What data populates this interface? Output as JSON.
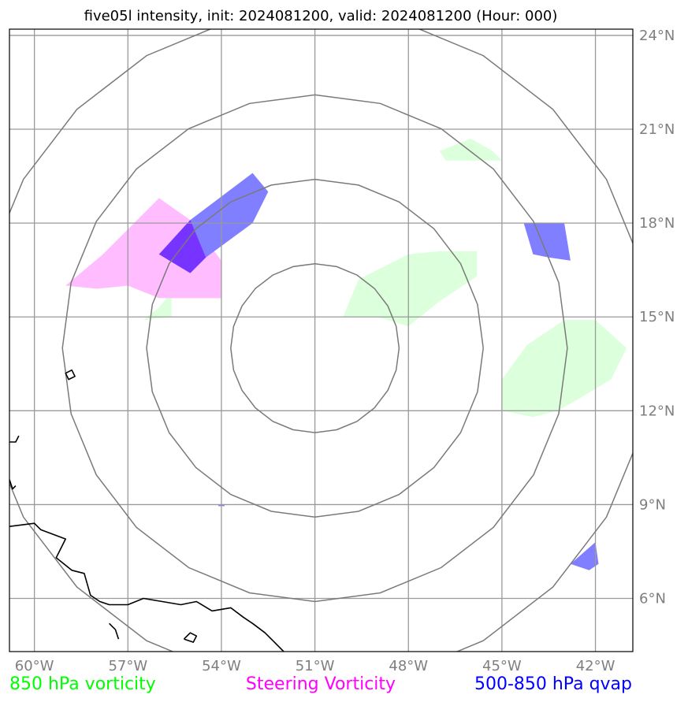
{
  "title": "five05l intensity, init: 2024081200, valid: 2024081200 (Hour: 000)",
  "map": {
    "lon_range": [
      -60.8,
      -40.8
    ],
    "lat_range": [
      4.3,
      24.2
    ],
    "lon_ticks": [
      {
        "value": -60,
        "label": "60°W"
      },
      {
        "value": -57,
        "label": "57°W"
      },
      {
        "value": -54,
        "label": "54°W"
      },
      {
        "value": -51,
        "label": "51°W"
      },
      {
        "value": -48,
        "label": "48°W"
      },
      {
        "value": -45,
        "label": "45°W"
      },
      {
        "value": -42,
        "label": "42°W"
      }
    ],
    "lat_ticks": [
      {
        "value": 24,
        "label": "24°N"
      },
      {
        "value": 21,
        "label": "21°N"
      },
      {
        "value": 18,
        "label": "18°N"
      },
      {
        "value": 15,
        "label": "15°N"
      },
      {
        "value": 12,
        "label": "12°N"
      },
      {
        "value": 9,
        "label": "9°N"
      },
      {
        "value": 6,
        "label": "6°N"
      }
    ],
    "center": {
      "lon": -51,
      "lat": 14
    },
    "range_rings_deg": [
      2.7,
      5.4,
      8.1,
      10.8
    ]
  },
  "legend": [
    {
      "label": "850 hPa vorticity",
      "color": "#00ff00"
    },
    {
      "label": "Steering Vorticity",
      "color": "#ff00ff"
    },
    {
      "label": "500-850 hPa qvap",
      "color": "#0000ff"
    }
  ],
  "fields": {
    "vort850": {
      "color": "#dcffdc",
      "polygons": [
        [
          [
            -46.0,
            20.7
          ],
          [
            -47.0,
            20.3
          ],
          [
            -46.8,
            20.0
          ],
          [
            -45.0,
            20.0
          ],
          [
            -45.3,
            20.3
          ]
        ],
        [
          [
            -50.1,
            15.0
          ],
          [
            -49.6,
            16.2
          ],
          [
            -48.0,
            17.0
          ],
          [
            -47.0,
            17.1
          ],
          [
            -45.8,
            17.1
          ],
          [
            -45.8,
            16.3
          ],
          [
            -47.0,
            15.5
          ],
          [
            -48.0,
            14.7
          ],
          [
            -49.0,
            15.0
          ]
        ],
        [
          [
            -56.5,
            14.9
          ],
          [
            -55.6,
            15.0
          ],
          [
            -55.6,
            15.8
          ],
          [
            -56.0,
            15.3
          ]
        ],
        [
          [
            -43.0,
            14.9
          ],
          [
            -42.0,
            14.9
          ],
          [
            -41.0,
            14.0
          ],
          [
            -41.5,
            13.0
          ],
          [
            -42.5,
            12.4
          ],
          [
            -43.2,
            12.0
          ],
          [
            -44.0,
            11.8
          ],
          [
            -45.0,
            12.0
          ],
          [
            -45.0,
            11.3
          ],
          [
            -45.0,
            13.0
          ],
          [
            -44.2,
            14.1
          ]
        ]
      ]
    },
    "steering": {
      "color": "#ffbcff",
      "polygons": [
        [
          [
            -59.0,
            16.0
          ],
          [
            -57.8,
            17.0
          ],
          [
            -56.0,
            18.8
          ],
          [
            -55.0,
            18.1
          ],
          [
            -54.0,
            16.8
          ],
          [
            -54.0,
            15.6
          ],
          [
            -56.0,
            15.6
          ],
          [
            -57.0,
            16.0
          ],
          [
            -58.0,
            15.9
          ]
        ]
      ]
    },
    "qvap": {
      "color": "#7f7fff",
      "polygons": [
        [
          [
            -55.0,
            18.1
          ],
          [
            -53.0,
            19.6
          ],
          [
            -52.5,
            19.0
          ],
          [
            -53.0,
            18.0
          ],
          [
            -54.5,
            16.9
          ],
          [
            -55.0,
            16.4
          ],
          [
            -56.0,
            17.0
          ]
        ],
        [
          [
            -44.3,
            18.0
          ],
          [
            -43.0,
            18.0
          ],
          [
            -42.8,
            16.8
          ],
          [
            -43.5,
            16.9
          ],
          [
            -44.0,
            17.0
          ]
        ],
        [
          [
            -42.0,
            7.8
          ],
          [
            -41.9,
            7.1
          ],
          [
            -42.2,
            6.9
          ],
          [
            -42.8,
            7.1
          ]
        ],
        [
          [
            -54.1,
            9.0
          ],
          [
            -53.9,
            9.0
          ],
          [
            -53.9,
            8.95
          ],
          [
            -54.1,
            8.95
          ]
        ]
      ]
    },
    "overlap": {
      "color": "#7733ff",
      "polygons": [
        [
          [
            -55.0,
            18.1
          ],
          [
            -54.5,
            16.9
          ],
          [
            -55.0,
            16.4
          ],
          [
            -56.0,
            17.0
          ]
        ]
      ]
    }
  },
  "coastlines": [
    [
      [
        -60.8,
        8.3
      ],
      [
        -60.0,
        8.4
      ],
      [
        -59.8,
        8.2
      ],
      [
        -59.0,
        7.9
      ],
      [
        -59.3,
        7.3
      ],
      [
        -58.8,
        6.9
      ],
      [
        -58.4,
        6.8
      ],
      [
        -58.2,
        6.1
      ],
      [
        -57.9,
        5.9
      ],
      [
        -57.6,
        5.8
      ],
      [
        -57.0,
        5.8
      ],
      [
        -56.5,
        6.0
      ],
      [
        -55.9,
        5.9
      ],
      [
        -55.3,
        5.8
      ],
      [
        -54.8,
        5.9
      ],
      [
        -54.3,
        5.6
      ],
      [
        -53.7,
        5.7
      ],
      [
        -53.3,
        5.4
      ],
      [
        -53.0,
        5.2
      ],
      [
        -52.6,
        4.9
      ],
      [
        -52.3,
        4.6
      ],
      [
        -52.0,
        4.3
      ]
    ],
    [
      [
        -60.8,
        11.0
      ],
      [
        -60.6,
        11.0
      ],
      [
        -60.5,
        11.2
      ]
    ],
    [
      [
        -60.8,
        9.8
      ],
      [
        -60.7,
        9.5
      ],
      [
        -60.6,
        9.6
      ]
    ],
    [
      [
        -57.6,
        5.2
      ],
      [
        -57.4,
        5.0
      ],
      [
        -57.3,
        4.7
      ]
    ],
    [
      [
        -55.2,
        4.7
      ],
      [
        -55.0,
        4.9
      ],
      [
        -54.8,
        4.8
      ],
      [
        -54.9,
        4.6
      ],
      [
        -55.2,
        4.7
      ]
    ]
  ],
  "islands": [
    [
      [
        -59.0,
        13.2
      ],
      [
        -58.8,
        13.3
      ],
      [
        -58.7,
        13.1
      ],
      [
        -58.9,
        13.0
      ]
    ]
  ]
}
